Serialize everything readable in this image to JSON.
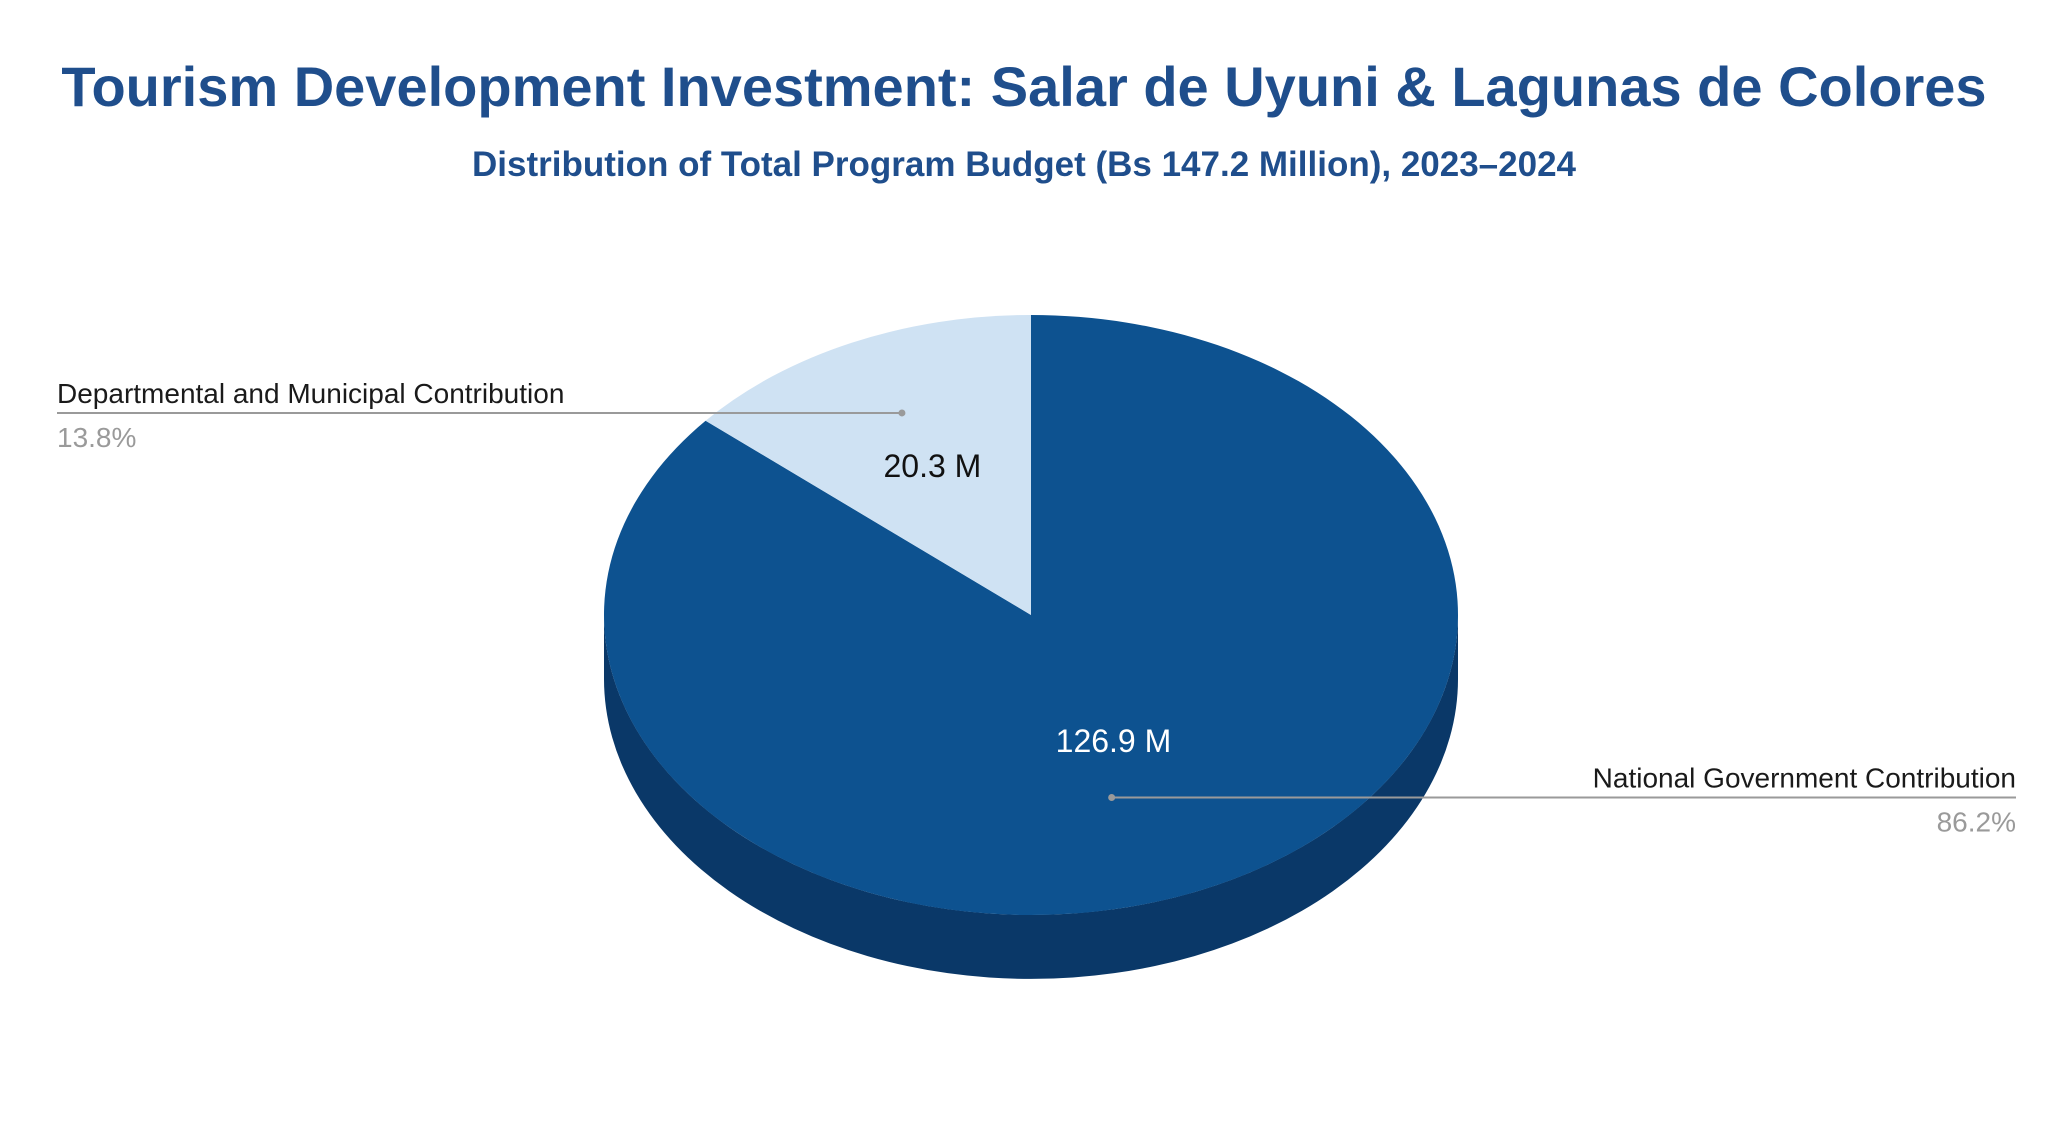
{
  "chart_data": {
    "type": "pie",
    "title": "Tourism Development Investment: Salar de Uyuni & Lagunas de Colores",
    "subtitle": "Distribution of Total Program Budget (Bs 147.2 Million), 2023–2024",
    "unit": "Bs Million",
    "three_d": true,
    "start_angle_deg": 0,
    "direction": "clockwise",
    "slices": [
      {
        "name": "National Government Contribution",
        "value": 126.9,
        "value_label": "126.9 M",
        "percent": 86.2,
        "percent_label": "86.2%",
        "color": "#0d5290",
        "side_color": "#0a3868",
        "label_color": "#ffffff",
        "legend_side": "right"
      },
      {
        "name": "Departmental and Municipal Contribution",
        "value": 20.3,
        "value_label": "20.3 M",
        "percent": 13.8,
        "percent_label": "13.8%",
        "color": "#cfe2f3",
        "side_color": "#a9c4dd",
        "label_color": "#111111",
        "legend_side": "left"
      }
    ],
    "colors": {
      "title": "#1f4e8c",
      "leader_line": "#9a9a9a",
      "percent_text": "#9a9a9a"
    }
  }
}
